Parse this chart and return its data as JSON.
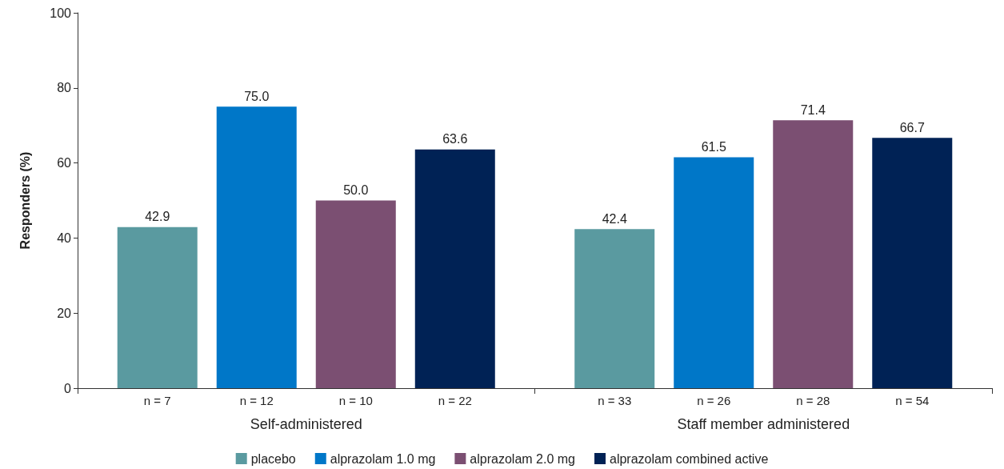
{
  "chart_data": {
    "type": "bar",
    "ylabel": "Responders (%)",
    "categories": [
      "Self-administered",
      "Staff member administered"
    ],
    "series": [
      {
        "name": "placebo",
        "color": "#5a9aa0",
        "values": [
          42.9,
          42.4
        ],
        "value_labels": [
          "42.9",
          "42.4"
        ]
      },
      {
        "name": "alprazolam 1.0 mg",
        "color": "#0077c8",
        "values": [
          75.0,
          61.5
        ],
        "value_labels": [
          "75.0",
          "61.5"
        ]
      },
      {
        "name": "alprazolam 2.0 mg",
        "color": "#7b4f72",
        "values": [
          50.0,
          71.4
        ],
        "value_labels": [
          "50.0",
          "71.4"
        ]
      },
      {
        "name": "alprazolam combined active",
        "color": "#002255",
        "values": [
          63.6,
          66.7
        ],
        "value_labels": [
          "63.6",
          "66.7"
        ]
      }
    ],
    "annotations": [
      "n = 7",
      "n = 12",
      "n = 10",
      "n = 22",
      "n = 33",
      "n = 26",
      "n = 28",
      "n = 54"
    ],
    "ylim": [
      0,
      100
    ],
    "yticks": [
      0,
      20,
      40,
      60,
      80,
      100
    ],
    "grid": false,
    "legend": "bottom"
  }
}
